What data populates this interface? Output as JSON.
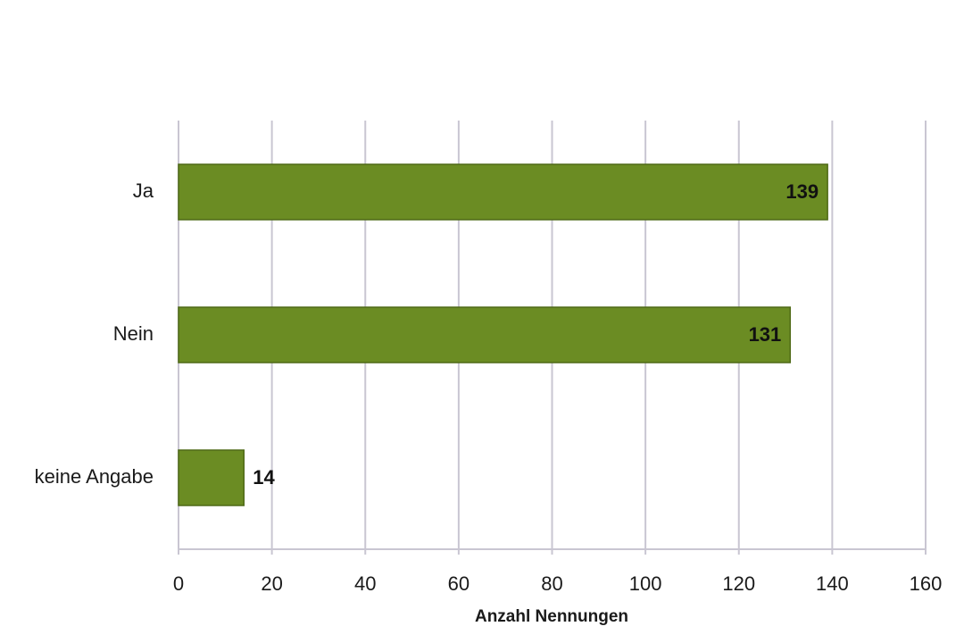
{
  "chart_data": {
    "type": "bar",
    "orientation": "horizontal",
    "categories": [
      "Ja",
      "Nein",
      "keine Angabe"
    ],
    "values": [
      139,
      131,
      14
    ],
    "color": "#6b8c23",
    "xlabel": "Anzahl Nennungen",
    "xlim": [
      0,
      160
    ],
    "xticks": [
      0,
      20,
      40,
      60,
      80,
      100,
      120,
      140,
      160
    ],
    "grid": true
  }
}
